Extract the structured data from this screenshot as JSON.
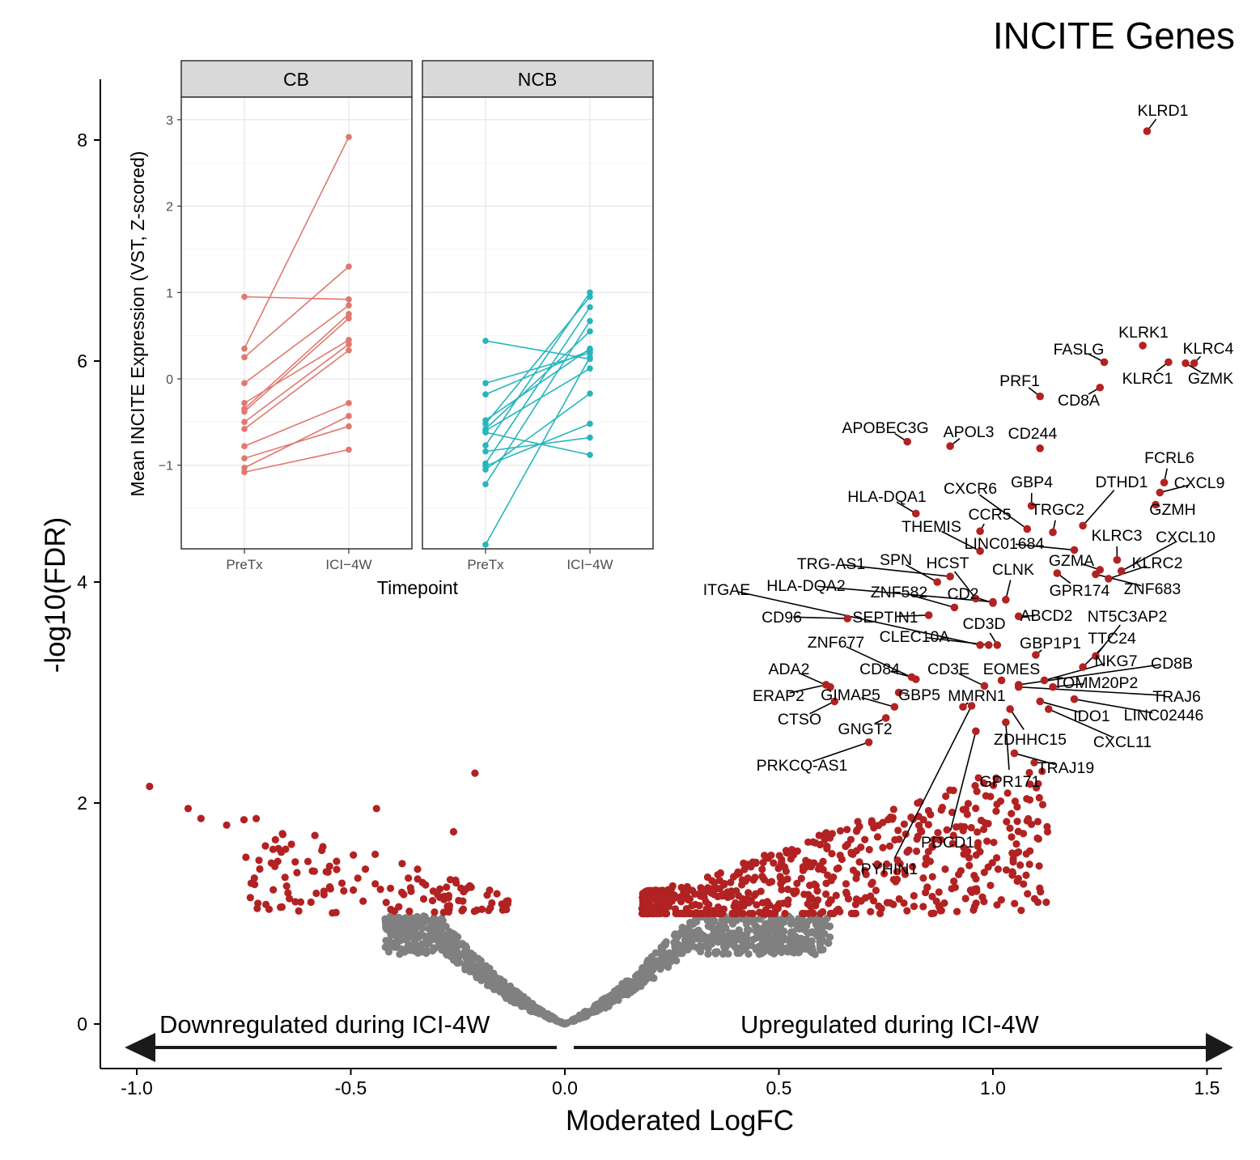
{
  "chart_data": [
    {
      "type": "scatter",
      "subtype": "volcano",
      "title": "INCITE Genes",
      "xlabel": "Moderated LogFC",
      "ylabel": "-log10(FDR)",
      "xlim": [
        -1.05,
        1.55
      ],
      "ylim": [
        -0.4,
        8.6
      ],
      "xticks": [
        -1.0,
        -0.5,
        0.0,
        0.5,
        1.0,
        1.5
      ],
      "xtick_labels": [
        "-1.0",
        "-0.5",
        "0.0",
        "0.5",
        "1.0",
        "1.5"
      ],
      "yticks": [
        0,
        2,
        4,
        6,
        8
      ],
      "ytick_labels": [
        "0",
        "2",
        "4",
        "6",
        "8"
      ],
      "significance_threshold": 1.0,
      "colors": {
        "significant": "#b22222",
        "nonsignificant": "#808080",
        "arrow": "#1a1a1a"
      },
      "annotations": {
        "left_arrow_label": "Downregulated during ICI-4W",
        "right_arrow_label": "Upregulated during ICI-4W"
      },
      "labeled_genes": [
        {
          "gene": "KLRD1",
          "x": 1.36,
          "y": 8.08
        },
        {
          "gene": "KLRK1",
          "x": 1.35,
          "y": 6.14
        },
        {
          "gene": "KLRC4",
          "x": 1.47,
          "y": 5.98
        },
        {
          "gene": "FASLG",
          "x": 1.26,
          "y": 5.99
        },
        {
          "gene": "KLRC1",
          "x": 1.41,
          "y": 5.99
        },
        {
          "gene": "GZMK",
          "x": 1.45,
          "y": 5.98
        },
        {
          "gene": "CD8A",
          "x": 1.25,
          "y": 5.76
        },
        {
          "gene": "PRF1",
          "x": 1.11,
          "y": 5.68
        },
        {
          "gene": "APOBEC3G",
          "x": 0.8,
          "y": 5.27
        },
        {
          "gene": "APOL3",
          "x": 0.9,
          "y": 5.23
        },
        {
          "gene": "CD244",
          "x": 1.11,
          "y": 5.21
        },
        {
          "gene": "FCRL6",
          "x": 1.4,
          "y": 4.9
        },
        {
          "gene": "CXCL9",
          "x": 1.39,
          "y": 4.81
        },
        {
          "gene": "GZMH",
          "x": 1.38,
          "y": 4.7
        },
        {
          "gene": "DTHD1",
          "x": 1.21,
          "y": 4.51
        },
        {
          "gene": "GBP4",
          "x": 1.09,
          "y": 4.69
        },
        {
          "gene": "CXCR6",
          "x": 1.08,
          "y": 4.48
        },
        {
          "gene": "HLA-DQA1",
          "x": 0.82,
          "y": 4.62
        },
        {
          "gene": "TRGC2",
          "x": 1.14,
          "y": 4.45
        },
        {
          "gene": "CCR5",
          "x": 0.97,
          "y": 4.46
        },
        {
          "gene": "THEMIS",
          "x": 0.97,
          "y": 4.28
        },
        {
          "gene": "LINC01684",
          "x": 1.19,
          "y": 4.29
        },
        {
          "gene": "KLRC3",
          "x": 1.29,
          "y": 4.2
        },
        {
          "gene": "CXCL10",
          "x": 1.3,
          "y": 4.1
        },
        {
          "gene": "GZMA",
          "x": 1.25,
          "y": 4.11
        },
        {
          "gene": "KLRC2",
          "x": 1.27,
          "y": 4.03
        },
        {
          "gene": "ZNF683",
          "x": 1.24,
          "y": 4.07
        },
        {
          "gene": "TRG-AS1",
          "x": 0.9,
          "y": 4.05
        },
        {
          "gene": "SPN",
          "x": 0.87,
          "y": 4.0
        },
        {
          "gene": "HCST",
          "x": 0.96,
          "y": 3.85
        },
        {
          "gene": "CLNK",
          "x": 1.03,
          "y": 3.84
        },
        {
          "gene": "GPR174",
          "x": 1.15,
          "y": 4.08
        },
        {
          "gene": "ITGAE",
          "x": 0.97,
          "y": 3.43
        },
        {
          "gene": "HLA-DQA2",
          "x": 1.0,
          "y": 3.82
        },
        {
          "gene": "ZNF582",
          "x": 0.91,
          "y": 3.77
        },
        {
          "gene": "CD2",
          "x": 1.0,
          "y": 3.81
        },
        {
          "gene": "CD96",
          "x": 0.66,
          "y": 3.67
        },
        {
          "gene": "SEPTIN1",
          "x": 0.85,
          "y": 3.7
        },
        {
          "gene": "ABCD2",
          "x": 1.06,
          "y": 3.69
        },
        {
          "gene": "NT5C3AP2",
          "x": 1.24,
          "y": 3.33
        },
        {
          "gene": "CD3D",
          "x": 1.01,
          "y": 3.43
        },
        {
          "gene": "CLEC10A",
          "x": 0.99,
          "y": 3.43
        },
        {
          "gene": "ZNF677",
          "x": 0.82,
          "y": 3.12
        },
        {
          "gene": "GBP1P1",
          "x": 1.1,
          "y": 3.34
        },
        {
          "gene": "TTC24",
          "x": 1.21,
          "y": 3.23
        },
        {
          "gene": "ADA2",
          "x": 0.62,
          "y": 3.05
        },
        {
          "gene": "CD84",
          "x": 0.81,
          "y": 3.14
        },
        {
          "gene": "CD3E",
          "x": 0.98,
          "y": 3.06
        },
        {
          "gene": "EOMES",
          "x": 1.02,
          "y": 3.11
        },
        {
          "gene": "NKG7",
          "x": 1.12,
          "y": 3.11
        },
        {
          "gene": "CD8B",
          "x": 1.06,
          "y": 3.07
        },
        {
          "gene": "TOMM20P2",
          "x": 1.14,
          "y": 3.05
        },
        {
          "gene": "ERAP2",
          "x": 0.61,
          "y": 3.07
        },
        {
          "gene": "GIMAP5",
          "x": 0.77,
          "y": 2.87
        },
        {
          "gene": "GBP5",
          "x": 0.78,
          "y": 3.0
        },
        {
          "gene": "MMRN1",
          "x": 0.93,
          "y": 2.87
        },
        {
          "gene": "TRAJ6",
          "x": 1.06,
          "y": 3.05
        },
        {
          "gene": "IDO1",
          "x": 1.11,
          "y": 2.92
        },
        {
          "gene": "LINC02446",
          "x": 1.19,
          "y": 2.94
        },
        {
          "gene": "CTSO",
          "x": 0.63,
          "y": 2.92
        },
        {
          "gene": "GNGT2",
          "x": 0.75,
          "y": 2.77
        },
        {
          "gene": "ZDHHC15",
          "x": 1.04,
          "y": 2.85
        },
        {
          "gene": "CXCL11",
          "x": 1.13,
          "y": 2.85
        },
        {
          "gene": "PRKCQ-AS1",
          "x": 0.71,
          "y": 2.55
        },
        {
          "gene": "TRAJ19",
          "x": 1.05,
          "y": 2.45
        },
        {
          "gene": "GPR171",
          "x": 1.03,
          "y": 2.73
        },
        {
          "gene": "PDCD1",
          "x": 0.96,
          "y": 2.65
        },
        {
          "gene": "PYHIN1",
          "x": 0.95,
          "y": 2.88
        }
      ]
    },
    {
      "type": "line",
      "subtype": "faceted paired slope chart (inset)",
      "xlabel": "Timepoint",
      "ylabel": "Mean INCITE Expression (VST, Z-scored)",
      "categories": [
        "PreTx",
        "ICI−4W"
      ],
      "ylim": [
        -1.95,
        3.25
      ],
      "yticks": [
        -1,
        0,
        1,
        2,
        3
      ],
      "ytick_labels": [
        "−1",
        "0",
        "1",
        "2",
        "3"
      ],
      "facets": [
        {
          "name": "CB",
          "color": "#e07870",
          "pairs": [
            [
              0.95,
              0.92
            ],
            [
              0.35,
              2.8
            ],
            [
              0.25,
              1.3
            ],
            [
              -0.28,
              0.45
            ],
            [
              -0.05,
              0.85
            ],
            [
              -0.35,
              0.75
            ],
            [
              -0.38,
              0.7
            ],
            [
              -0.5,
              0.4
            ],
            [
              -0.58,
              0.33
            ],
            [
              -0.78,
              -0.28
            ],
            [
              -0.92,
              -0.55
            ],
            [
              -1.03,
              -0.43
            ],
            [
              -1.08,
              -0.82
            ]
          ]
        },
        {
          "name": "NCB",
          "color": "#26b5bd",
          "pairs": [
            [
              0.44,
              0.23
            ],
            [
              -0.18,
              0.33
            ],
            [
              -0.05,
              0.3
            ],
            [
              -0.48,
              0.35
            ],
            [
              -1.22,
              0.67
            ],
            [
              -0.98,
              0.83
            ],
            [
              -0.52,
              0.95
            ],
            [
              -0.77,
              1.0
            ],
            [
              -0.58,
              0.55
            ],
            [
              -1.01,
              -0.52
            ],
            [
              -1.05,
              -0.17
            ],
            [
              -1.92,
              0.25
            ],
            [
              -0.84,
              -0.68
            ],
            [
              -0.62,
              -0.88
            ],
            [
              -0.6,
              0.12
            ]
          ]
        }
      ]
    }
  ]
}
